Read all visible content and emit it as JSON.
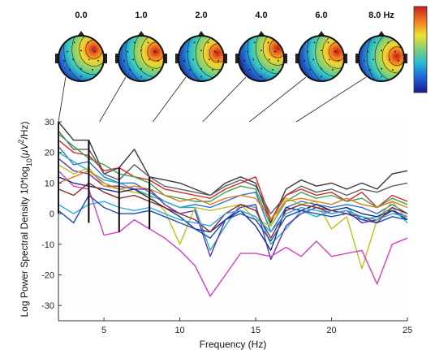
{
  "chart_data": {
    "type": "line",
    "xlabel": "Frequency (Hz)",
    "ylabel_parts": [
      "Log Power Spectral Density 10*log",
      "10",
      "(",
      "μV",
      "2",
      "/Hz)"
    ],
    "xlim": [
      2,
      25
    ],
    "ylim": [
      -35,
      30
    ],
    "xticks": [
      "5",
      "10",
      "15",
      "20",
      "25"
    ],
    "xtick_values": [
      5,
      10,
      15,
      20,
      25
    ],
    "yticks": [
      "-30",
      "-20",
      "-10",
      "0",
      "10",
      "20",
      "30"
    ],
    "ytick_values": [
      -30,
      -20,
      -10,
      0,
      10,
      20,
      30
    ],
    "grid": false,
    "x": [
      2,
      3,
      4,
      5,
      6,
      7,
      8,
      9,
      10,
      11,
      12,
      13,
      14,
      15,
      16,
      17,
      18,
      19,
      20,
      21,
      22,
      23,
      24,
      25
    ],
    "series": [
      {
        "color": "#3a3a3a",
        "values": [
          30,
          24,
          24,
          13,
          15,
          21,
          12,
          11,
          10,
          8,
          6,
          10,
          12,
          10,
          -3,
          8,
          11,
          9,
          10,
          8,
          10,
          8,
          13,
          14
        ]
      },
      {
        "color": "#606060",
        "values": [
          27,
          21,
          21,
          13,
          11,
          16,
          12,
          9,
          8,
          7,
          6,
          9,
          11,
          9,
          0,
          6,
          9,
          7,
          8,
          6,
          8,
          7,
          9,
          10
        ]
      },
      {
        "color": "#d6262b",
        "values": [
          24,
          20,
          19,
          14,
          15,
          12,
          11,
          8,
          7,
          6,
          5,
          8,
          10,
          12,
          -2,
          6,
          8,
          6,
          7,
          4,
          7,
          2,
          6,
          4
        ]
      },
      {
        "color": "#3aa655",
        "values": [
          26,
          22,
          18,
          16,
          13,
          12,
          10,
          6,
          5,
          4,
          4,
          7,
          9,
          8,
          -4,
          4,
          7,
          5,
          6,
          4,
          5,
          2,
          5,
          3
        ]
      },
      {
        "color": "#2d6fd3",
        "values": [
          22,
          16,
          17,
          12,
          10,
          10,
          7,
          4,
          2,
          3,
          2,
          4,
          6,
          7,
          -6,
          2,
          4,
          3,
          2,
          3,
          2,
          0,
          3,
          0
        ]
      },
      {
        "color": "#21b5b5",
        "values": [
          20,
          17,
          14,
          11,
          10,
          8,
          6,
          4,
          2,
          2,
          -12,
          -4,
          3,
          2,
          -10,
          -5,
          1,
          -1,
          1,
          2,
          -2,
          -1,
          2,
          -3
        ]
      },
      {
        "color": "#6a2fb8",
        "values": [
          18,
          14,
          13,
          9,
          9,
          8,
          8,
          3,
          0,
          1,
          -14,
          -2,
          2,
          3,
          -15,
          -4,
          0,
          2,
          0,
          1,
          -3,
          -2,
          1,
          -1
        ]
      },
      {
        "color": "#bfbf1e",
        "values": [
          16,
          13,
          15,
          9,
          8,
          7,
          6,
          1,
          -10,
          2,
          1,
          2,
          3,
          -2,
          -4,
          5,
          3,
          4,
          -5,
          -1,
          -18,
          -2,
          4,
          -2
        ]
      },
      {
        "color": "#d63fc0",
        "values": [
          14,
          9,
          8,
          -7,
          -6,
          -2,
          -5,
          -8,
          -12,
          -17,
          -27,
          -20,
          -13,
          -13,
          -14,
          -11,
          -14,
          -9,
          -14,
          -13,
          -12,
          -23,
          -10,
          -8
        ]
      },
      {
        "color": "#1a2f88",
        "values": [
          12,
          10,
          9,
          8,
          7,
          8,
          5,
          2,
          -1,
          -5,
          -6,
          -2,
          1,
          -4,
          -12,
          2,
          1,
          3,
          1,
          2,
          0,
          -1,
          1,
          -2
        ]
      },
      {
        "color": "#e07a1f",
        "values": [
          10,
          12,
          14,
          10,
          8,
          9,
          8,
          6,
          4,
          5,
          3,
          5,
          6,
          5,
          -2,
          4,
          5,
          4,
          3,
          5,
          3,
          2,
          4,
          2
        ]
      },
      {
        "color": "#8b2a2a",
        "values": [
          8,
          6,
          10,
          7,
          5,
          6,
          4,
          2,
          0,
          -2,
          -6,
          0,
          3,
          1,
          -8,
          1,
          3,
          2,
          1,
          0,
          -1,
          -3,
          2,
          0
        ]
      },
      {
        "color": "#2da8e6",
        "values": [
          3,
          0,
          3,
          4,
          2,
          1,
          2,
          0,
          -2,
          -3,
          -4,
          0,
          1,
          -1,
          -6,
          0,
          2,
          1,
          0,
          1,
          -1,
          -2,
          0,
          -1
        ]
      },
      {
        "color": "#1f4bb8",
        "values": [
          1,
          -3,
          6,
          2,
          0,
          0,
          1,
          -1,
          -3,
          -5,
          -8,
          -2,
          0,
          -2,
          -9,
          -1,
          1,
          0,
          -1,
          0,
          -2,
          -3,
          -1,
          -2
        ]
      }
    ],
    "markers": [
      {
        "x": 2,
        "top": 30,
        "bottom": 0
      },
      {
        "x": 4,
        "top": 24,
        "bottom": -3
      },
      {
        "x": 6,
        "top": 15,
        "bottom": -6
      },
      {
        "x": 8,
        "top": 12,
        "bottom": -5
      }
    ],
    "topomaps": [
      {
        "label": "0.0",
        "freq": 2,
        "hot": [
          0.78,
          0.3
        ]
      },
      {
        "label": "1.0",
        "freq": 4,
        "hot": [
          0.82,
          0.35
        ]
      },
      {
        "label": "2.0",
        "freq": 6,
        "hot": [
          0.86,
          0.38
        ]
      },
      {
        "label": "4.0",
        "freq": 8,
        "hot": [
          0.86,
          0.28
        ]
      },
      {
        "label": "6.0",
        "freq": 10,
        "hot": [
          0.85,
          0.35
        ]
      },
      {
        "label": "8.0 Hz",
        "freq": 12,
        "hot": [
          0.84,
          0.45
        ]
      }
    ],
    "colorbar": [
      "#1a1a8c",
      "#1f5fd6",
      "#22b8d6",
      "#7fd07a",
      "#f0e030",
      "#f07820",
      "#c81e1e"
    ]
  }
}
